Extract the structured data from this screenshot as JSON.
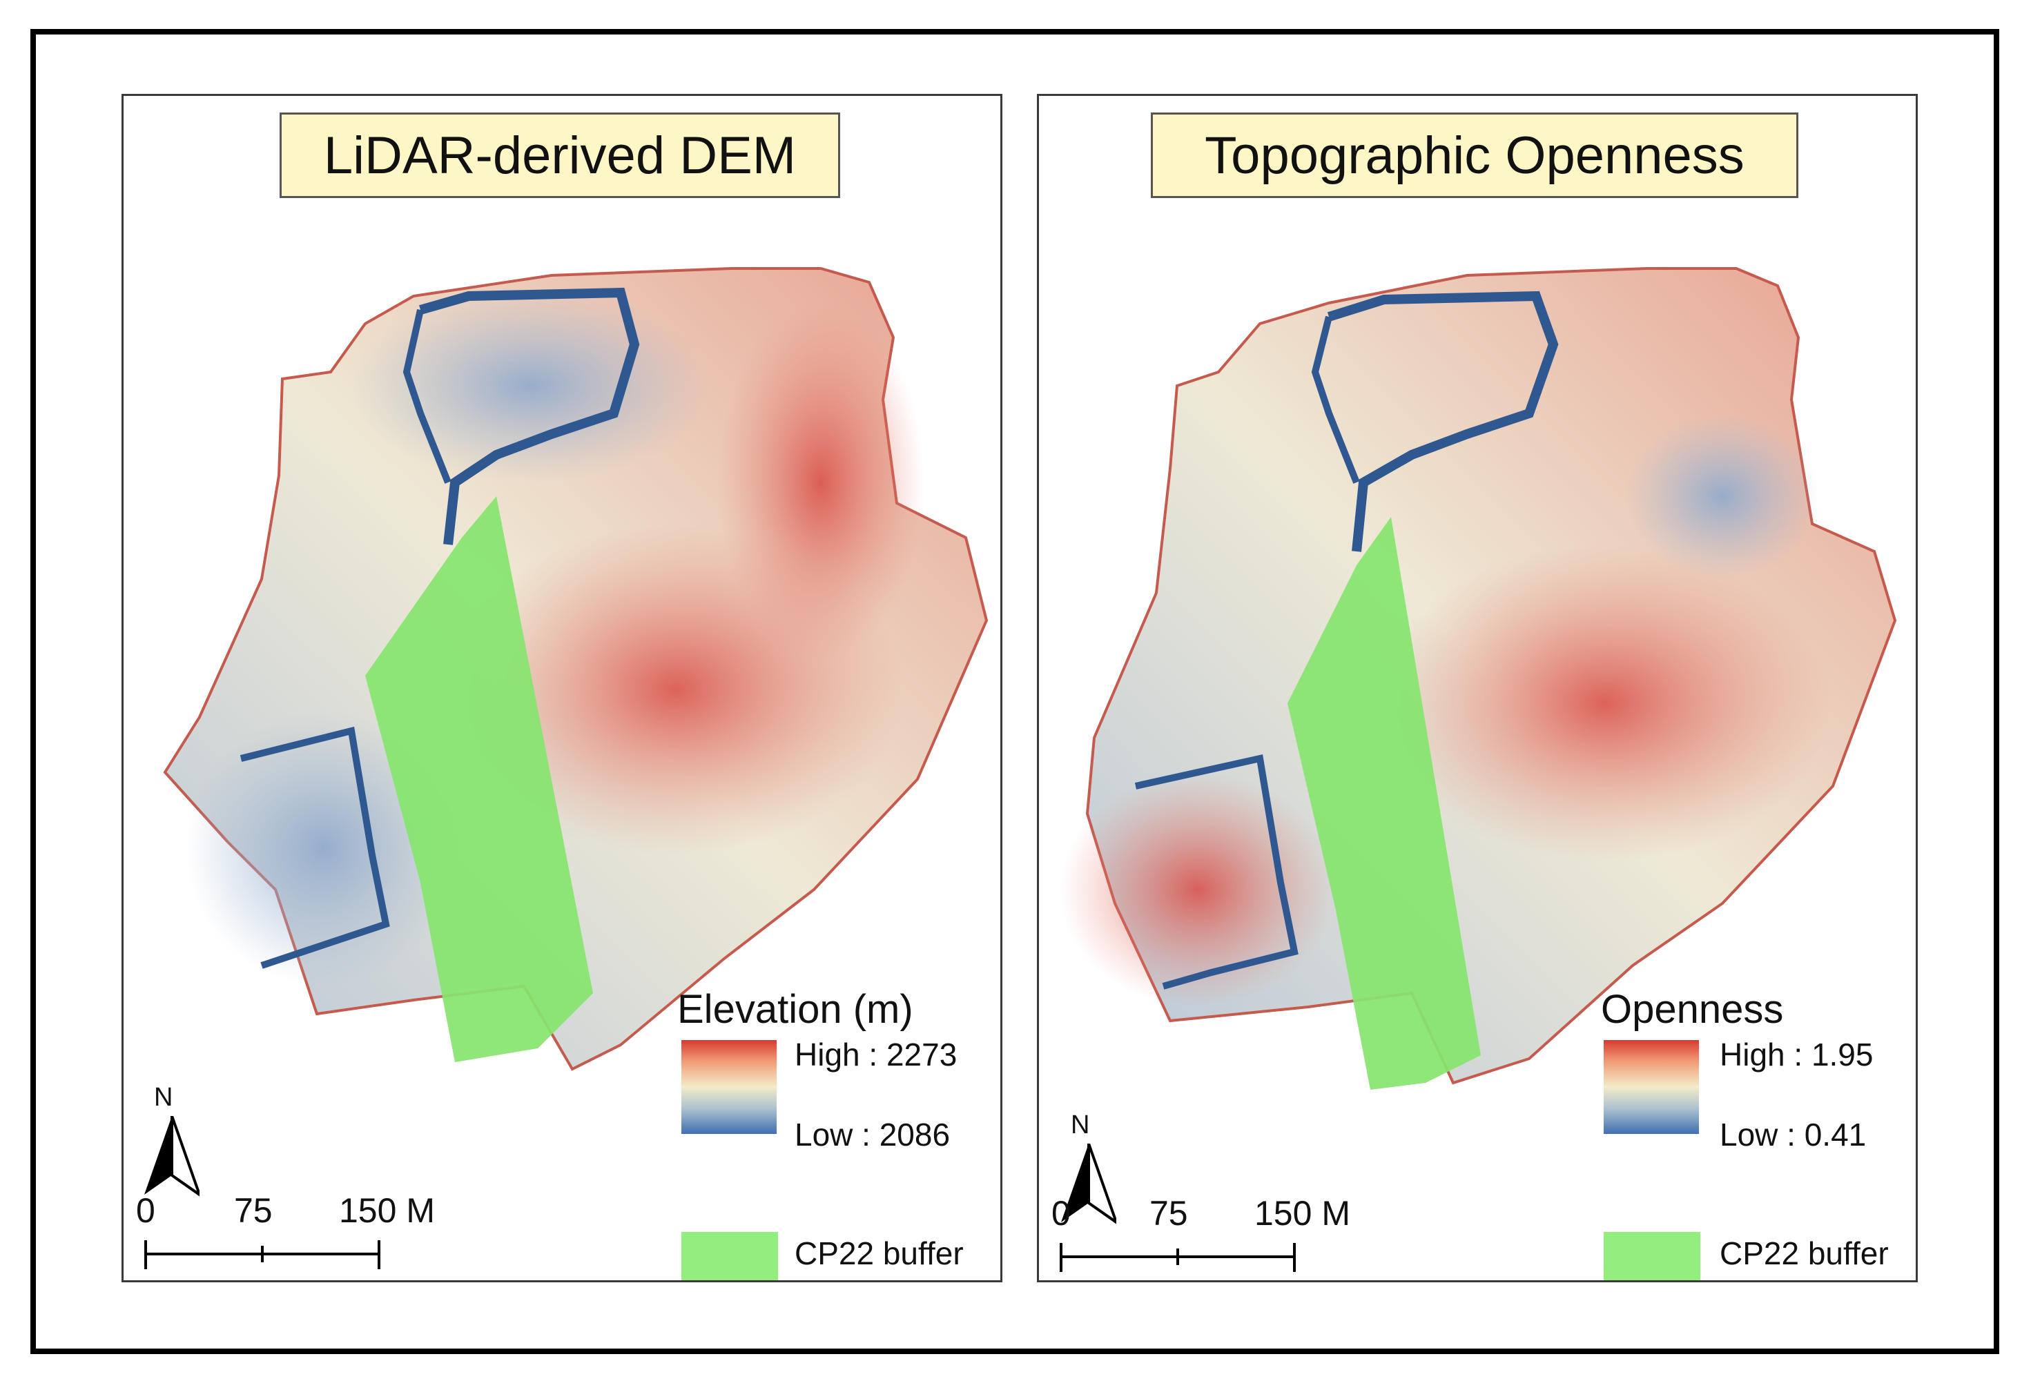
{
  "panels": [
    {
      "title": "LiDAR-derived DEM",
      "legend": {
        "title": "Elevation (m)",
        "high_label": "High : 2273",
        "low_label": "Low : 2086",
        "buffer_label": "CP22 buffer"
      },
      "scale": {
        "ticks": [
          "0",
          "75",
          "150 M"
        ]
      },
      "north": "N"
    },
    {
      "title": "Topographic Openness",
      "legend": {
        "title": "Openness",
        "high_label": "High : 1.95",
        "low_label": "Low : 0.41",
        "buffer_label": "CP22 buffer"
      },
      "scale": {
        "ticks": [
          "0",
          "75",
          "150 M"
        ]
      },
      "north": "N"
    }
  ],
  "colors": {
    "high": "#d83a30",
    "mid": "#f3ecc9",
    "low": "#3f6eb0",
    "buffer": "#93ee7e",
    "title_bg": "#fdf6c6"
  }
}
